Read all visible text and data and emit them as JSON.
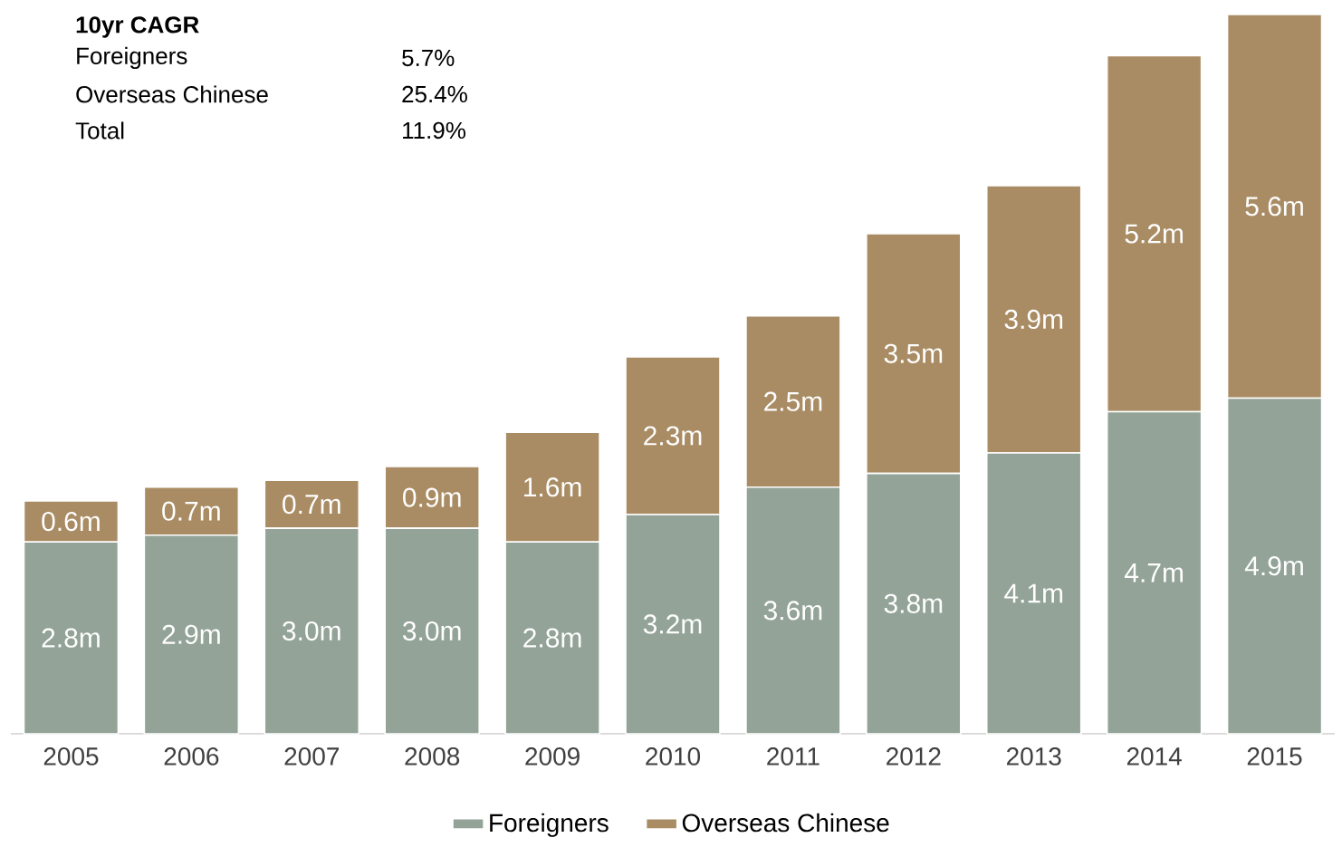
{
  "chart_data": {
    "type": "bar",
    "stacked": true,
    "legend": "bottom",
    "categories": [
      "2005",
      "2006",
      "2007",
      "2008",
      "2009",
      "2010",
      "2011",
      "2012",
      "2013",
      "2014",
      "2015"
    ],
    "series": [
      {
        "name": "Foreigners",
        "color": "#93a397",
        "values": [
          2.8,
          2.9,
          3.0,
          3.0,
          2.8,
          3.2,
          3.6,
          3.8,
          4.1,
          4.7,
          4.9
        ],
        "value_labels": [
          "2.8m",
          "2.9m",
          "3.0m",
          "3.0m",
          "2.8m",
          "3.2m",
          "3.6m",
          "3.8m",
          "4.1m",
          "4.7m",
          "4.9m"
        ]
      },
      {
        "name": "Overseas Chinese",
        "color": "#a98c64",
        "values": [
          0.6,
          0.7,
          0.7,
          0.9,
          1.6,
          2.3,
          2.5,
          3.5,
          3.9,
          5.2,
          5.6
        ],
        "value_labels": [
          "0.6m",
          "0.7m",
          "0.7m",
          "0.9m",
          "1.6m",
          "2.3m",
          "2.5m",
          "3.5m",
          "3.9m",
          "5.2m",
          "5.6m"
        ]
      }
    ],
    "annotations": [
      "10yr CAGR",
      "Foreigners",
      "5.7%",
      "Overseas Chinese",
      "25.4%",
      "Total",
      "11.9%"
    ]
  }
}
